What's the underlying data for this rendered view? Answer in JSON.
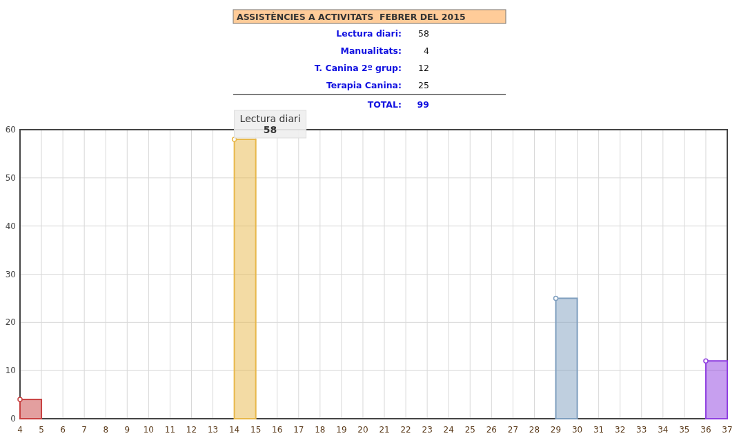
{
  "chart_data": {
    "type": "bar",
    "title": "ASSISTÈNCIES A ACTIVITATS  FEBRER DEL 2015",
    "series": [
      {
        "x": [
          4,
          14,
          29,
          36
        ],
        "values": [
          4,
          58,
          25,
          12
        ],
        "colors": [
          "#c84040",
          "#e8b84a",
          "#7f9fbf",
          "#9040e0"
        ]
      },
      {
        "type": "scatter",
        "x": [
          4,
          14,
          29,
          36
        ],
        "values": [
          4,
          58,
          25,
          12
        ],
        "colors": [
          "#c84040",
          "#e8b84a",
          "#7f9fbf",
          "#9040e0"
        ]
      }
    ],
    "annotations": [
      "Lectura diari:",
      "58",
      "Manualitats:",
      "4",
      "T. Canina 2º grup:",
      "12",
      "Terapia Canina:",
      "25",
      "TOTAL:",
      "99",
      "58",
      {
        "text": "Lectura diari",
        "x": 14,
        "y": 58
      }
    ],
    "xlim": [
      4,
      37
    ],
    "xticks": [
      4,
      5,
      6,
      7,
      8,
      9,
      10,
      11,
      12,
      13,
      14,
      15,
      16,
      17,
      18,
      19,
      20,
      21,
      22,
      23,
      24,
      25,
      26,
      27,
      28,
      29,
      30,
      31,
      32,
      33,
      34,
      35,
      36,
      37
    ],
    "ylim": [
      0,
      60
    ],
    "yticks": [
      0,
      10,
      20,
      30,
      40,
      50,
      60
    ],
    "grid": true,
    "marker": "circle"
  }
}
